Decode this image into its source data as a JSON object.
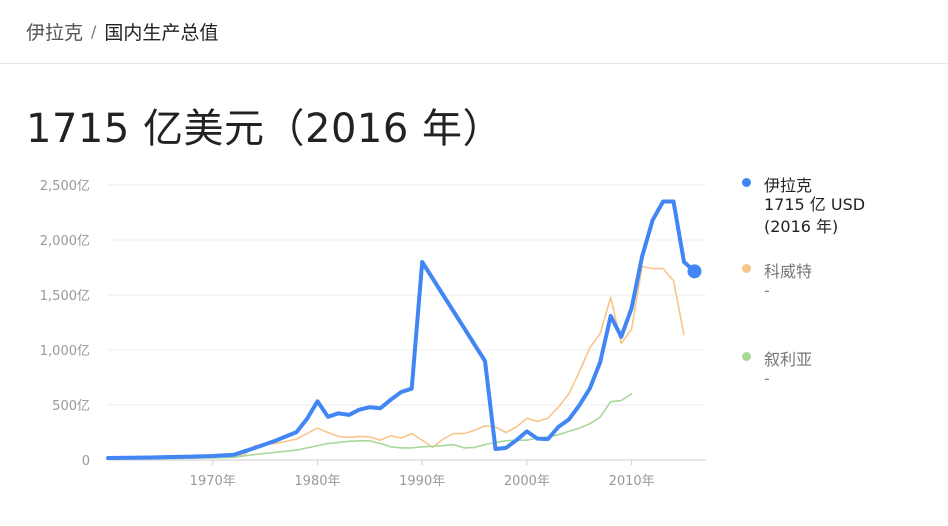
{
  "breadcrumb": {
    "country": "伊拉克",
    "separator": "/",
    "metric": "国内生产总值"
  },
  "headline": "1715 亿美元（2016 年）",
  "chart_data": {
    "type": "line",
    "title": "",
    "xlabel": "",
    "ylabel": "",
    "xlim": [
      1960,
      2017
    ],
    "ylim": [
      0,
      2500
    ],
    "grid": true,
    "legend_position": "right",
    "x_ticks": [
      1970,
      1980,
      1990,
      2000,
      2010
    ],
    "x_tick_labels": [
      "1970年",
      "1980年",
      "1990年",
      "2000年",
      "2010年"
    ],
    "y_ticks": [
      0,
      500,
      1000,
      1500,
      2000,
      2500
    ],
    "y_tick_labels": [
      "0",
      "500亿",
      "1,000亿",
      "1,500亿",
      "2,000亿",
      "2,500亿"
    ],
    "series": [
      {
        "name": "伊拉克",
        "color": "#4285f4",
        "emphasis": "bold",
        "legend_lines": [
          "1715 亿 USD",
          "(2016 年)"
        ],
        "highlight_last_point": true,
        "x": [
          1960,
          1962,
          1964,
          1966,
          1968,
          1970,
          1972,
          1974,
          1976,
          1978,
          1979,
          1980,
          1981,
          1982,
          1983,
          1984,
          1985,
          1986,
          1987,
          1988,
          1989,
          1990,
          1991,
          1992,
          1993,
          1994,
          1995,
          1996,
          1997,
          1998,
          1999,
          2000,
          2001,
          2002,
          2003,
          2004,
          2005,
          2006,
          2007,
          2008,
          2009,
          2010,
          2011,
          2012,
          2013,
          2014,
          2015,
          2016
        ],
        "y": [
          18,
          20,
          23,
          27,
          31,
          36,
          47,
          109,
          176,
          254,
          374,
          534,
          393,
          425,
          410,
          457,
          480,
          470,
          548,
          618,
          648,
          1800,
          1650,
          1500,
          1350,
          1200,
          1050,
          900,
          100,
          110,
          180,
          260,
          195,
          190,
          300,
          368,
          496,
          650,
          890,
          1310,
          1120,
          1380,
          1850,
          2180,
          2350,
          2350,
          1800,
          1715
        ]
      },
      {
        "name": "科威特",
        "color": "#f8c58b",
        "emphasis": "thin",
        "legend_lines": [
          "-"
        ],
        "x": [
          1960,
          1965,
          1970,
          1973,
          1974,
          1976,
          1978,
          1980,
          1981,
          1982,
          1983,
          1984,
          1985,
          1986,
          1987,
          1988,
          1989,
          1990,
          1991,
          1992,
          1993,
          1994,
          1995,
          1996,
          1997,
          1998,
          1999,
          2000,
          2001,
          2002,
          2003,
          2004,
          2005,
          2006,
          2007,
          2008,
          2009,
          2010,
          2011,
          2012,
          2013,
          2014,
          2015
        ],
        "y": [
          18,
          22,
          30,
          45,
          130,
          150,
          190,
          290,
          250,
          215,
          205,
          215,
          210,
          180,
          220,
          200,
          240,
          180,
          115,
          190,
          240,
          240,
          270,
          310,
          300,
          250,
          300,
          380,
          350,
          380,
          480,
          600,
          800,
          1020,
          1150,
          1480,
          1060,
          1190,
          1760,
          1740,
          1740,
          1630,
          1140
        ]
      },
      {
        "name": "叙利亚",
        "color": "#a8d89a",
        "emphasis": "thin",
        "legend_lines": [
          "-"
        ],
        "x": [
          1960,
          1965,
          1970,
          1972,
          1974,
          1976,
          1978,
          1980,
          1981,
          1982,
          1983,
          1984,
          1985,
          1986,
          1987,
          1988,
          1989,
          1990,
          1991,
          1992,
          1993,
          1994,
          1995,
          1996,
          1997,
          1998,
          1999,
          2000,
          2001,
          2002,
          2003,
          2004,
          2005,
          2006,
          2007,
          2008,
          2009,
          2010
        ],
        "y": [
          8,
          12,
          20,
          25,
          50,
          70,
          90,
          130,
          150,
          160,
          170,
          175,
          175,
          150,
          120,
          110,
          110,
          120,
          125,
          130,
          140,
          110,
          115,
          140,
          160,
          175,
          180,
          180,
          200,
          210,
          230,
          260,
          290,
          330,
          390,
          530,
          540,
          600
        ]
      }
    ]
  }
}
